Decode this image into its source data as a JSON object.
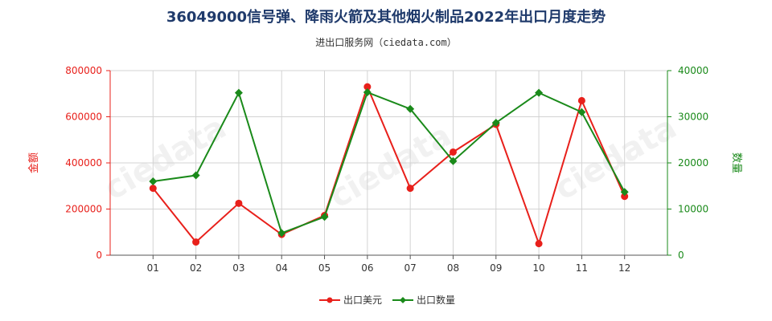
{
  "chart_data": {
    "type": "line",
    "title": "36049000信号弹、降雨火箭及其他烟火制品2022年出口月度走势",
    "subtitle": "进出口服务网（ciedata.com）",
    "categories": [
      "01",
      "02",
      "03",
      "04",
      "05",
      "06",
      "07",
      "08",
      "09",
      "10",
      "11",
      "12"
    ],
    "y_left": {
      "label": "金额",
      "ylim": [
        0,
        800000
      ],
      "ticks": [
        "0",
        "200000",
        "400000",
        "600000",
        "800000"
      ],
      "color": "#e8201b"
    },
    "y_right": {
      "label": "数量",
      "ylim": [
        0,
        40000
      ],
      "ticks": [
        "0",
        "10000",
        "20000",
        "30000",
        "40000"
      ],
      "color": "#1a8a1a"
    },
    "series": [
      {
        "name": "出口美元",
        "axis": "left",
        "color": "#e8201b",
        "marker": "circle",
        "values": [
          290000,
          57000,
          225000,
          90000,
          172000,
          730000,
          290000,
          447000,
          567000,
          50000,
          670000,
          255000
        ]
      },
      {
        "name": "出口数量",
        "axis": "right",
        "color": "#1a8a1a",
        "marker": "diamond",
        "values": [
          16000,
          17300,
          35200,
          4800,
          8300,
          35300,
          31700,
          20400,
          28700,
          35200,
          31000,
          13700
        ]
      }
    ],
    "grid": true,
    "legend_position": "bottom-center"
  }
}
